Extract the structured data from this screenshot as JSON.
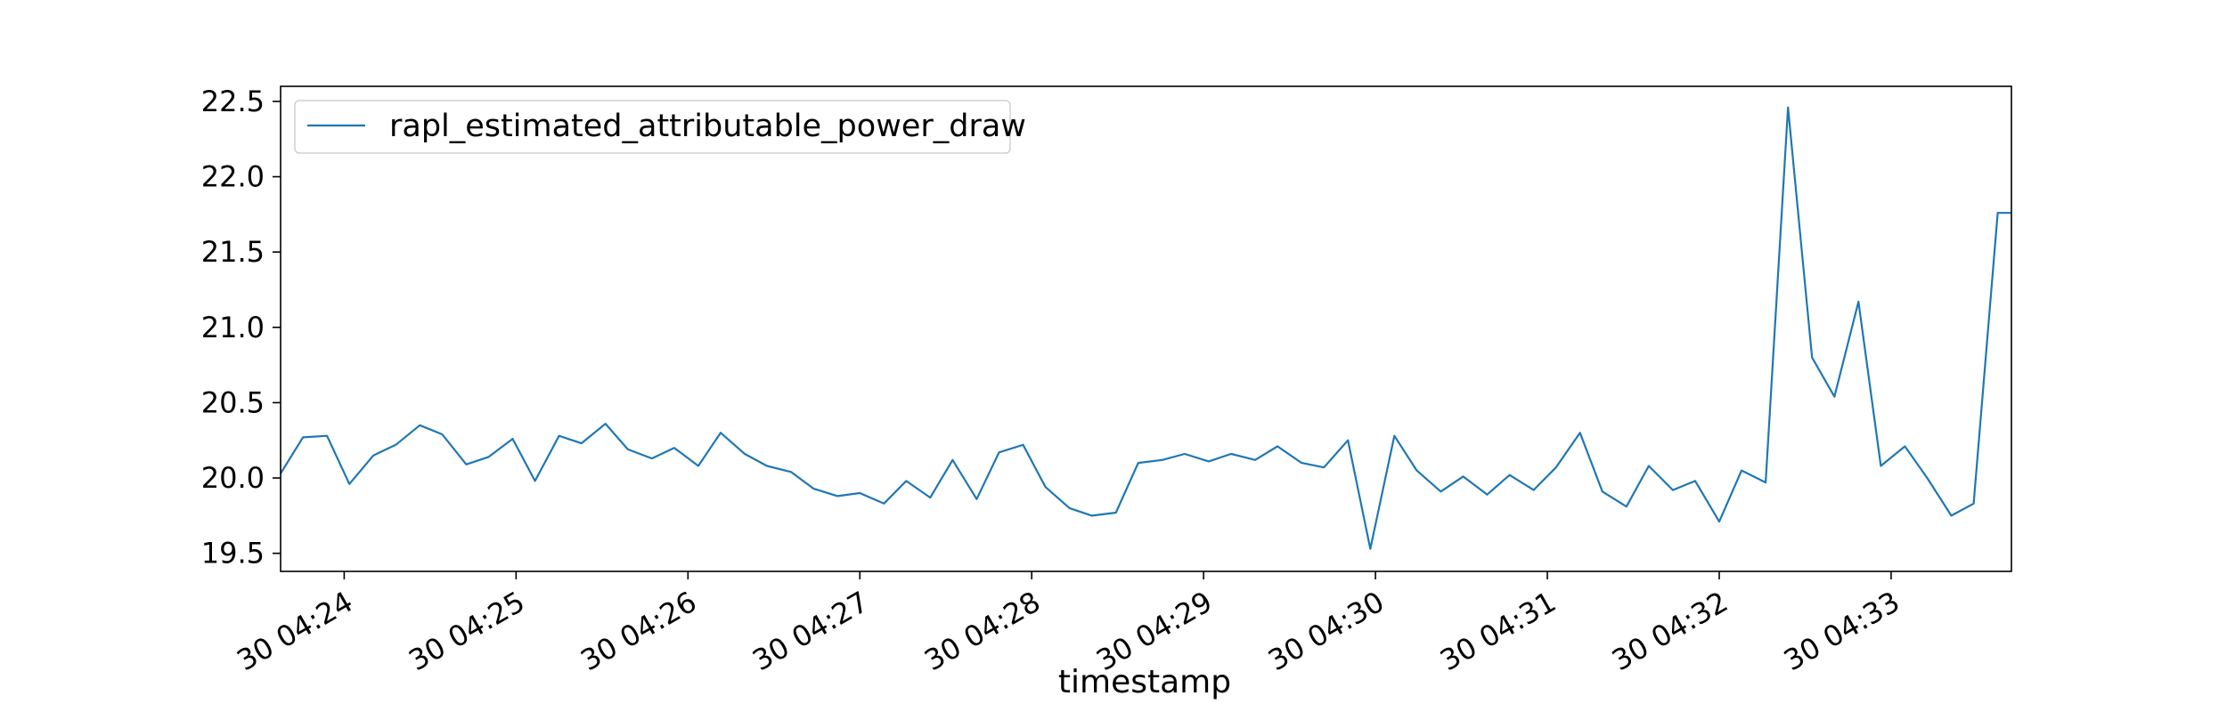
{
  "chart_data": {
    "type": "line",
    "title": "",
    "xlabel": "timestamp",
    "ylabel": "",
    "ylim": [
      19.38,
      22.6
    ],
    "yticks": [
      19.5,
      20.0,
      20.5,
      21.0,
      21.5,
      22.0,
      22.5
    ],
    "ytick_labels": [
      "19.5",
      "20.0",
      "20.5",
      "21.0",
      "21.5",
      "22.0",
      "22.5"
    ],
    "xlim_minutes": [
      23.63,
      33.7
    ],
    "xticks_minutes": [
      24,
      25,
      26,
      27,
      28,
      29,
      30,
      31,
      32,
      33
    ],
    "xtick_labels": [
      "30 04:24",
      "30 04:25",
      "30 04:26",
      "30 04:27",
      "30 04:28",
      "30 04:29",
      "30 04:30",
      "30 04:31",
      "30 04:32",
      "30 04:33"
    ],
    "legend_position": "top-left",
    "grid": false,
    "series": [
      {
        "name": "rapl_estimated_attributable_power_draw",
        "color": "#1f77b4",
        "x_minutes": [
          23.63,
          23.76,
          23.9,
          24.03,
          24.17,
          24.3,
          24.44,
          24.57,
          24.71,
          24.84,
          24.98,
          25.11,
          25.25,
          25.38,
          25.52,
          25.65,
          25.79,
          25.92,
          26.06,
          26.19,
          26.33,
          26.46,
          26.6,
          26.73,
          26.87,
          27.0,
          27.14,
          27.27,
          27.41,
          27.54,
          27.68,
          27.81,
          27.95,
          28.08,
          28.22,
          28.35,
          28.49,
          28.62,
          28.76,
          28.89,
          29.03,
          29.16,
          29.3,
          29.43,
          29.57,
          29.7,
          29.84,
          29.97,
          30.11,
          30.24,
          30.38,
          30.51,
          30.65,
          30.78,
          30.92,
          31.05,
          31.19,
          31.32,
          31.46,
          31.59,
          31.73,
          31.86,
          32.0,
          32.13,
          32.27,
          32.4,
          32.54,
          32.67,
          32.81,
          32.94,
          33.08,
          33.21,
          33.35,
          33.48,
          33.62,
          33.7
        ],
        "values": [
          20.03,
          20.27,
          20.28,
          19.96,
          20.15,
          20.22,
          20.35,
          20.29,
          20.09,
          20.14,
          20.26,
          19.98,
          20.28,
          20.23,
          20.36,
          20.19,
          20.13,
          20.2,
          20.08,
          20.3,
          20.16,
          20.08,
          20.04,
          19.93,
          19.88,
          19.9,
          19.83,
          19.98,
          19.87,
          20.12,
          19.86,
          20.17,
          20.22,
          19.94,
          19.8,
          19.75,
          19.77,
          20.1,
          20.12,
          20.16,
          20.11,
          20.16,
          20.12,
          20.21,
          20.1,
          20.07,
          20.25,
          19.53,
          20.28,
          20.05,
          19.91,
          20.01,
          19.89,
          20.02,
          19.92,
          20.07,
          20.3,
          19.91,
          19.81,
          20.08,
          19.92,
          19.98,
          19.71,
          20.05,
          19.97,
          22.46,
          20.8,
          20.54,
          21.17,
          20.08,
          20.21,
          20.0,
          19.75,
          19.83,
          21.76,
          21.76
        ]
      }
    ]
  }
}
